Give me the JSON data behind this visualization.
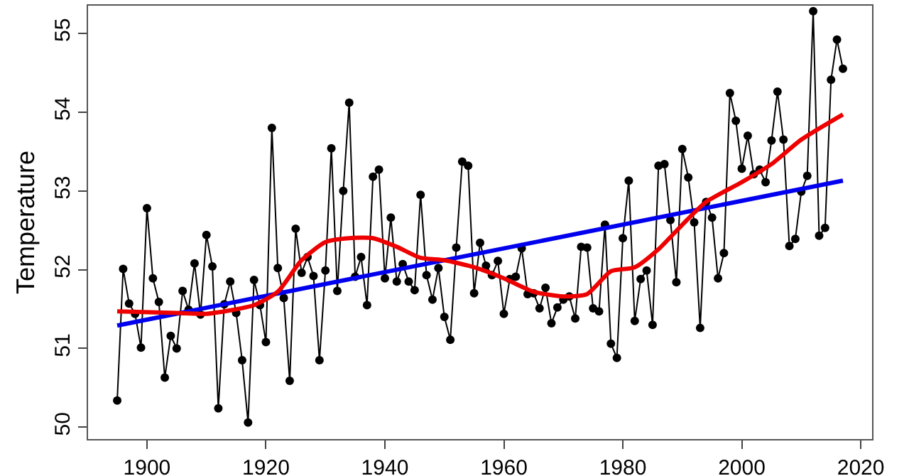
{
  "chart_data": {
    "type": "line",
    "ylabel": "Temperature",
    "x": [
      1895,
      1896,
      1897,
      1898,
      1899,
      1900,
      1901,
      1902,
      1903,
      1904,
      1905,
      1906,
      1907,
      1908,
      1909,
      1910,
      1911,
      1912,
      1913,
      1914,
      1915,
      1916,
      1917,
      1918,
      1919,
      1920,
      1921,
      1922,
      1923,
      1924,
      1925,
      1926,
      1927,
      1928,
      1929,
      1930,
      1931,
      1932,
      1933,
      1934,
      1935,
      1936,
      1937,
      1938,
      1939,
      1940,
      1941,
      1942,
      1943,
      1944,
      1945,
      1946,
      1947,
      1948,
      1949,
      1950,
      1951,
      1952,
      1953,
      1954,
      1955,
      1956,
      1957,
      1958,
      1959,
      1960,
      1961,
      1962,
      1963,
      1964,
      1965,
      1966,
      1967,
      1968,
      1969,
      1970,
      1971,
      1972,
      1973,
      1974,
      1975,
      1976,
      1977,
      1978,
      1979,
      1980,
      1981,
      1982,
      1983,
      1984,
      1985,
      1986,
      1987,
      1988,
      1989,
      1990,
      1991,
      1992,
      1993,
      1994,
      1995,
      1996,
      1997,
      1998,
      1999,
      2000,
      2001,
      2002,
      2003,
      2004,
      2005,
      2006,
      2007,
      2008,
      2009,
      2010,
      2011,
      2012,
      2013,
      2014,
      2015,
      2016,
      2017
    ],
    "series": [
      {
        "color": "#000000",
        "marker": "circle",
        "line_style": "solid",
        "values": [
          50.34,
          52.01,
          51.57,
          51.44,
          51.01,
          52.78,
          51.89,
          51.59,
          50.63,
          51.16,
          51.0,
          51.73,
          51.49,
          52.08,
          51.43,
          52.44,
          52.04,
          50.24,
          51.56,
          51.85,
          51.45,
          50.85,
          50.06,
          51.87,
          51.55,
          51.08,
          53.8,
          52.02,
          51.64,
          50.59,
          52.52,
          51.96,
          52.16,
          51.92,
          50.85,
          51.99,
          53.54,
          51.73,
          53.0,
          54.12,
          51.91,
          52.16,
          51.55,
          53.18,
          53.27,
          51.89,
          52.66,
          51.85,
          52.07,
          51.85,
          51.74,
          52.95,
          51.93,
          51.62,
          52.02,
          51.4,
          51.11,
          52.28,
          53.37,
          53.32,
          51.7,
          52.34,
          52.05,
          51.93,
          52.11,
          51.44,
          51.88,
          51.91,
          52.27,
          51.69,
          51.7,
          51.51,
          51.77,
          51.32,
          51.52,
          51.62,
          51.66,
          51.38,
          52.29,
          52.28,
          51.51,
          51.47,
          52.57,
          51.06,
          50.88,
          52.4,
          53.13,
          51.35,
          51.88,
          51.99,
          51.3,
          53.32,
          53.34,
          52.63,
          51.84,
          53.53,
          53.17,
          52.6,
          51.26,
          52.86,
          52.66,
          51.89,
          52.21,
          54.24,
          53.89,
          53.28,
          53.7,
          53.21,
          53.27,
          53.11,
          53.64,
          54.26,
          53.65,
          52.3,
          52.39,
          52.99,
          53.19,
          55.28,
          52.43,
          52.53,
          54.41,
          54.92,
          54.55
        ]
      },
      {
        "color": "#0000ee",
        "marker": "none",
        "line_style": "solid",
        "x": [
          1895,
          2017
        ],
        "values": [
          51.29,
          53.13
        ]
      },
      {
        "color": "#ee0000",
        "marker": "none",
        "line_style": "solid",
        "x": [
          1895,
          1905,
          1910,
          1918,
          1922,
          1926,
          1930,
          1934,
          1938,
          1942,
          1946,
          1950,
          1955,
          1960,
          1965,
          1970,
          1974,
          1978,
          1982,
          1986,
          1990,
          1994,
          2000,
          2005,
          2010,
          2017
        ],
        "values": [
          51.47,
          51.45,
          51.44,
          51.55,
          51.72,
          52.12,
          52.35,
          52.4,
          52.4,
          52.29,
          52.15,
          52.12,
          52.03,
          51.89,
          51.72,
          51.66,
          51.69,
          51.98,
          52.03,
          52.26,
          52.57,
          52.86,
          53.11,
          53.34,
          53.65,
          53.97
        ]
      }
    ],
    "xlim": [
      1890.1,
      2021.9
    ],
    "xticks": [
      1900,
      1920,
      1940,
      1960,
      1980,
      2000,
      2020
    ],
    "ylim": [
      49.85,
      55.35
    ],
    "yticks": [
      50,
      51,
      52,
      53,
      54,
      55
    ]
  }
}
